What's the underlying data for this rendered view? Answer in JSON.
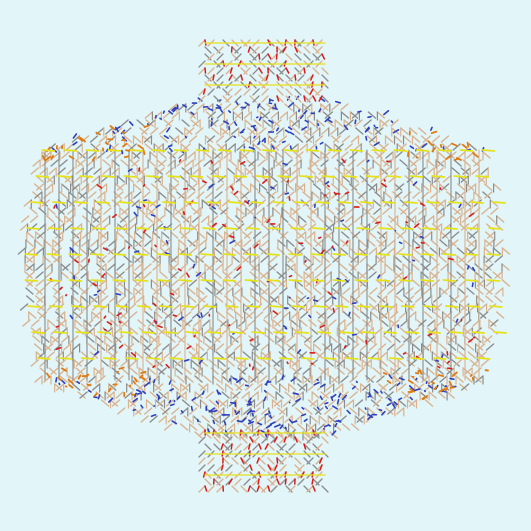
{
  "scene": {
    "subject": "molecular-lattice-render",
    "palette": {
      "background": "#e2f5f8",
      "bond_tan": "#d9b28f",
      "bond_gray": "#8c8c8c",
      "bond_blue": "#2e3fbf",
      "bond_orange": "#e07a10",
      "bond_red": "#d81c1c",
      "bond_yellow": "#e6e21a"
    }
  }
}
